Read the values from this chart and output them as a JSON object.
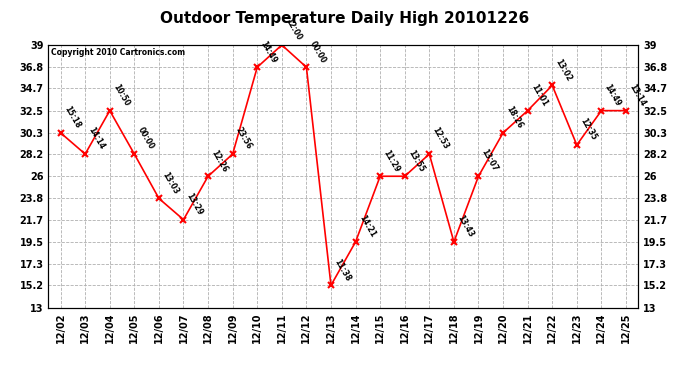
{
  "title": "Outdoor Temperature Daily High 20101226",
  "copyright": "Copyright 2010 Cartronics.com",
  "x_labels": [
    "12/02",
    "12/03",
    "12/04",
    "12/05",
    "12/06",
    "12/07",
    "12/08",
    "12/09",
    "12/10",
    "12/11",
    "12/12",
    "12/13",
    "12/14",
    "12/15",
    "12/16",
    "12/17",
    "12/18",
    "12/19",
    "12/20",
    "12/21",
    "12/22",
    "12/23",
    "12/24",
    "12/25"
  ],
  "y_values": [
    30.3,
    28.2,
    32.5,
    28.2,
    23.8,
    21.7,
    26.0,
    28.2,
    36.8,
    39.0,
    36.8,
    15.2,
    19.5,
    26.0,
    26.0,
    28.2,
    19.5,
    26.0,
    30.3,
    32.5,
    35.0,
    29.1,
    32.5,
    32.5
  ],
  "point_labels": [
    "15:18",
    "14:14",
    "10:50",
    "00:00",
    "13:03",
    "13:29",
    "12:26",
    "23:56",
    "14:49",
    "12:00",
    "00:00",
    "11:38",
    "14:21",
    "11:29",
    "13:55",
    "12:53",
    "13:43",
    "13:07",
    "18:26",
    "11:01",
    "13:02",
    "12:35",
    "14:49",
    "13:14"
  ],
  "ylim_min": 13.0,
  "ylim_max": 39.0,
  "yticks": [
    13.0,
    15.2,
    17.3,
    19.5,
    21.7,
    23.8,
    26.0,
    28.2,
    30.3,
    32.5,
    34.7,
    36.8,
    39.0
  ],
  "line_color": "red",
  "marker_color": "red",
  "marker": "x",
  "background_color": "#ffffff",
  "plot_bg_color": "#ffffff",
  "grid_color": "#b0b0b0",
  "title_fontsize": 11,
  "tick_fontsize": 7,
  "label_fontsize": 6.5
}
